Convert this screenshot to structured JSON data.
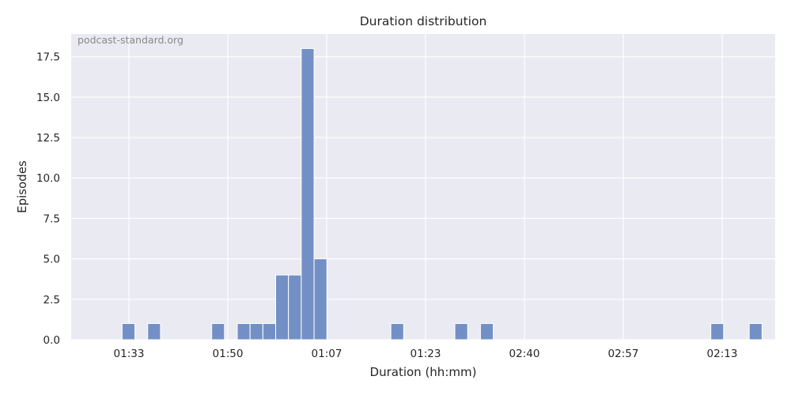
{
  "chart_data": {
    "type": "bar",
    "title": "Duration distribution",
    "xlabel": "Duration (hh:mm)",
    "ylabel": "Episodes",
    "watermark": "podcast-standard.org",
    "ylim": [
      0,
      18.9
    ],
    "yticks": [
      "0.0",
      "2.5",
      "5.0",
      "7.5",
      "10.0",
      "12.5",
      "15.0",
      "17.5"
    ],
    "xticks": [
      "01:33",
      "01:50",
      "01:07",
      "01:23",
      "02:40",
      "02:57",
      "02:13"
    ],
    "bin_count": 53,
    "bins": [
      {
        "bin": 2,
        "count": 1
      },
      {
        "bin": 4,
        "count": 1
      },
      {
        "bin": 9,
        "count": 1
      },
      {
        "bin": 11,
        "count": 1
      },
      {
        "bin": 12,
        "count": 1
      },
      {
        "bin": 13,
        "count": 1
      },
      {
        "bin": 14,
        "count": 4
      },
      {
        "bin": 15,
        "count": 4
      },
      {
        "bin": 16,
        "count": 18
      },
      {
        "bin": 17,
        "count": 5
      },
      {
        "bin": 23,
        "count": 1
      },
      {
        "bin": 28,
        "count": 1
      },
      {
        "bin": 30,
        "count": 1
      },
      {
        "bin": 48,
        "count": 1
      },
      {
        "bin": 51,
        "count": 1
      }
    ],
    "colors": {
      "background": "#eaeaf2",
      "grid": "#ffffff",
      "bar": "#7390c6"
    },
    "grid": true
  }
}
